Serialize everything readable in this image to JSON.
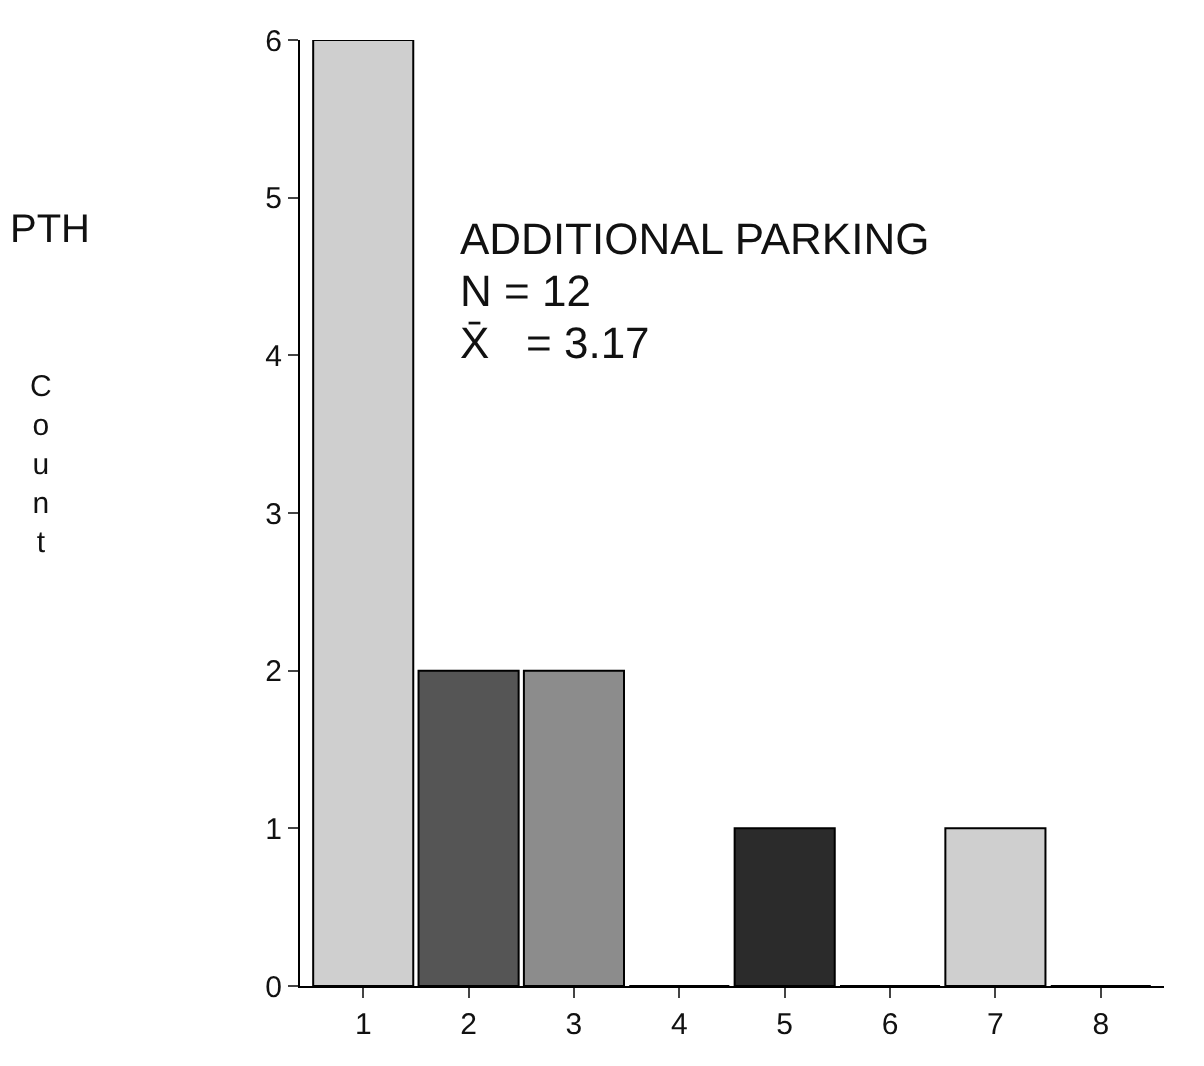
{
  "chart_data": {
    "type": "bar",
    "categories": [
      "1",
      "2",
      "3",
      "4",
      "5",
      "6",
      "7",
      "8"
    ],
    "values": [
      6,
      2,
      2,
      0,
      1,
      0,
      1,
      0
    ],
    "colors": [
      "#cfcfcf",
      "#555555",
      "#8c8c8c",
      "#cfcfcf",
      "#2b2b2b",
      "#cfcfcf",
      "#cfcfcf",
      "#cfcfcf"
    ],
    "ylim": [
      0,
      6
    ],
    "yticks": [
      0,
      1,
      2,
      3,
      4,
      5,
      6
    ],
    "annotations": [
      "ADDITIONAL PARKING",
      "N = 12",
      "X̄   = 3.17",
      "PTH",
      "Count"
    ],
    "legend": false
  }
}
